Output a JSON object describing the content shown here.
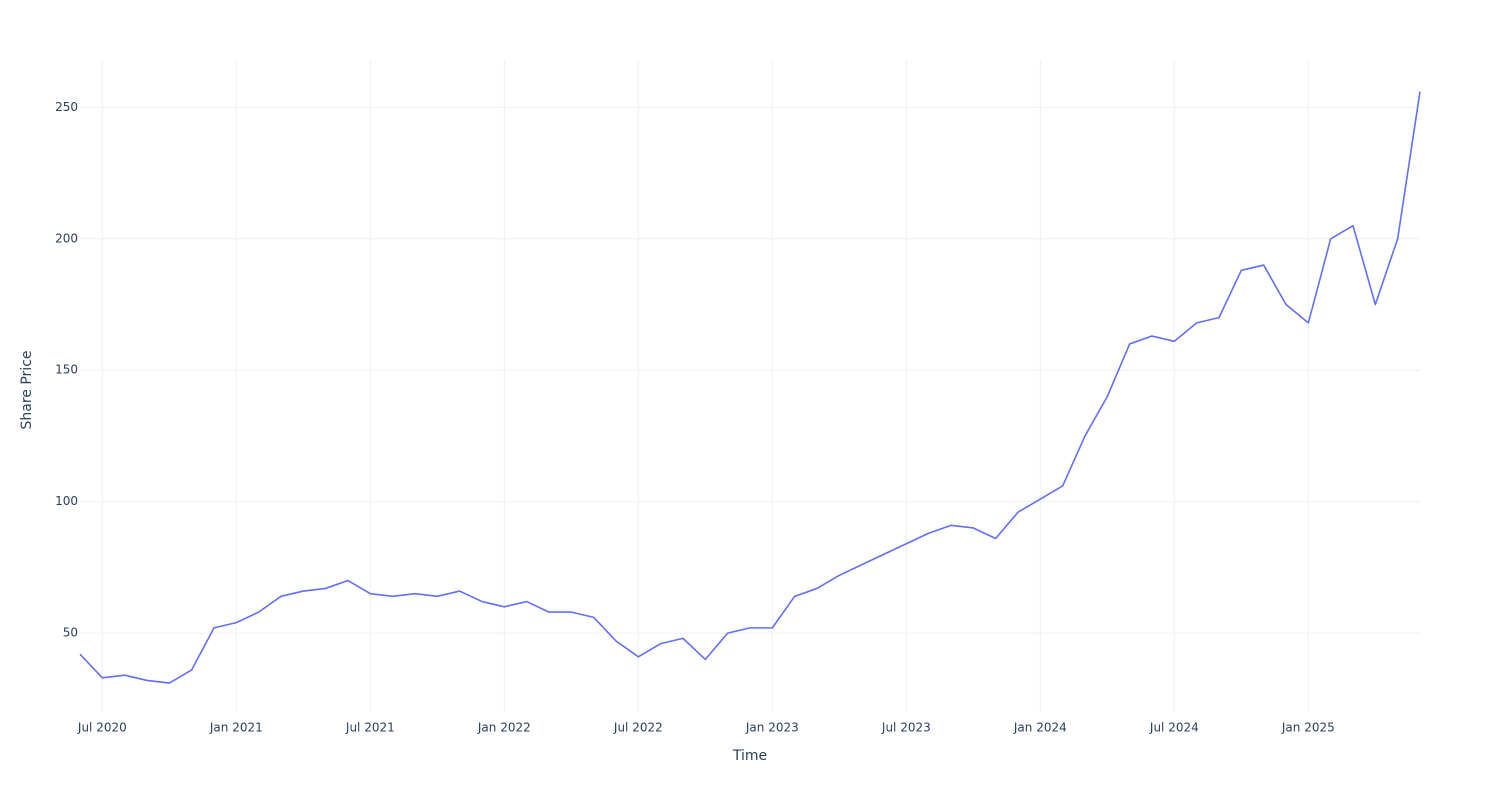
{
  "chart_data": {
    "type": "line",
    "x_label": "Time",
    "y_label": "Share Price",
    "x": [
      "2020-06",
      "2020-07",
      "2020-08",
      "2020-09",
      "2020-10",
      "2020-11",
      "2020-12",
      "2021-01",
      "2021-02",
      "2021-03",
      "2021-04",
      "2021-05",
      "2021-06",
      "2021-07",
      "2021-08",
      "2021-09",
      "2021-10",
      "2021-11",
      "2021-12",
      "2022-01",
      "2022-02",
      "2022-03",
      "2022-04",
      "2022-05",
      "2022-06",
      "2022-07",
      "2022-08",
      "2022-09",
      "2022-10",
      "2022-11",
      "2022-12",
      "2023-01",
      "2023-02",
      "2023-03",
      "2023-04",
      "2023-05",
      "2023-06",
      "2023-07",
      "2023-08",
      "2023-09",
      "2023-10",
      "2023-11",
      "2023-12",
      "2024-01",
      "2024-02",
      "2024-03",
      "2024-04",
      "2024-05",
      "2024-06",
      "2024-07",
      "2024-08",
      "2024-09",
      "2024-10",
      "2024-11",
      "2024-12",
      "2025-01",
      "2025-02",
      "2025-03",
      "2025-04",
      "2025-05",
      "2025-06"
    ],
    "series": [
      {
        "name": "Share Price",
        "color": "#636efa",
        "values": [
          42,
          33,
          34,
          32,
          31,
          36,
          52,
          54,
          58,
          64,
          66,
          67,
          70,
          65,
          64,
          65,
          64,
          66,
          62,
          60,
          62,
          58,
          58,
          56,
          47,
          41,
          46,
          48,
          40,
          50,
          52,
          52,
          64,
          67,
          72,
          76,
          80,
          84,
          88,
          91,
          90,
          86,
          96,
          101,
          106,
          125,
          140,
          160,
          163,
          161,
          168,
          170,
          188,
          190,
          175,
          168,
          200,
          205,
          175,
          200,
          256
        ]
      }
    ],
    "xlim": [
      "2020-06",
      "2025-06"
    ],
    "xticks": [
      {
        "value": "2020-07",
        "label": "Jul 2020"
      },
      {
        "value": "2021-01",
        "label": "Jan 2021"
      },
      {
        "value": "2021-07",
        "label": "Jul 2021"
      },
      {
        "value": "2022-01",
        "label": "Jan 2022"
      },
      {
        "value": "2022-07",
        "label": "Jul 2022"
      },
      {
        "value": "2023-01",
        "label": "Jan 2023"
      },
      {
        "value": "2023-07",
        "label": "Jul 2023"
      },
      {
        "value": "2024-01",
        "label": "Jan 2024"
      },
      {
        "value": "2024-07",
        "label": "Jul 2024"
      },
      {
        "value": "2025-01",
        "label": "Jan 2025"
      }
    ],
    "ylim": [
      20,
      268
    ],
    "yticks": [
      50,
      100,
      150,
      200,
      250
    ],
    "grid": true
  }
}
